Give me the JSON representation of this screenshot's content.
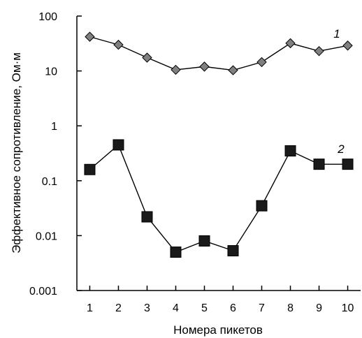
{
  "chart_data": {
    "type": "scatter",
    "title": "",
    "xlabel": "Номера пикетов",
    "ylabel": "Эффективное сопротивление, Ом·м",
    "x": [
      1,
      2,
      3,
      4,
      5,
      6,
      7,
      8,
      9,
      10
    ],
    "xlim": [
      0.55,
      10.45
    ],
    "ylim": [
      0.001,
      100
    ],
    "yscale": "log",
    "xticks": [
      "1",
      "2",
      "3",
      "4",
      "5",
      "6",
      "7",
      "8",
      "9",
      "10"
    ],
    "yticks": [
      "0.001",
      "0.01",
      "0.1",
      "1",
      "10",
      "100"
    ],
    "grid": false,
    "series": [
      {
        "name": "1",
        "marker": "diamond",
        "color": "#808080",
        "values": [
          42,
          30,
          17.5,
          10.5,
          12,
          10.3,
          14.5,
          32,
          23,
          29
        ]
      },
      {
        "name": "2",
        "marker": "square",
        "color": "#1a1a1a",
        "values": [
          0.16,
          0.45,
          0.022,
          0.005,
          0.008,
          0.0053,
          0.035,
          0.35,
          0.2,
          0.2
        ]
      }
    ]
  }
}
